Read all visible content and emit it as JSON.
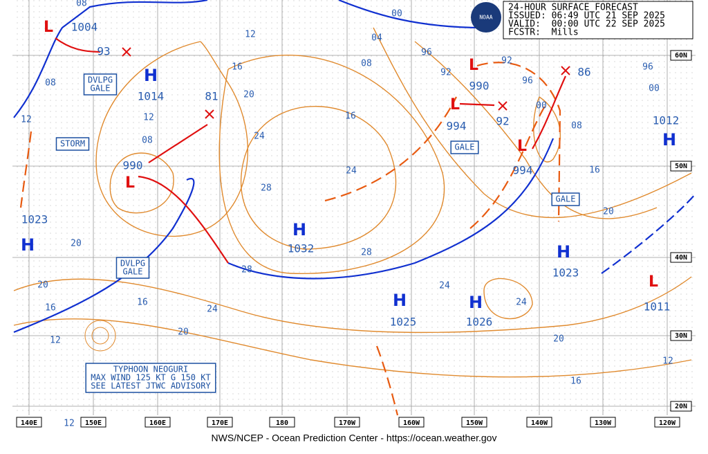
{
  "header": {
    "lines": [
      "24-HOUR SURFACE FORECAST",
      "ISSUED: 06:49 UTC 21 SEP 2025",
      "VALID:  00:00 UTC 22 SEP 2025",
      "FCSTR:  Mills"
    ],
    "logo": "NOAA"
  },
  "footer": "NWS/NCEP - Ocean Prediction Center - https://ocean.weather.gov",
  "longitudes": [
    "140E",
    "150E",
    "160E",
    "170E",
    "180",
    "170W",
    "160W",
    "150W",
    "140W",
    "130W",
    "120W"
  ],
  "latitudes": [
    "60N",
    "50N",
    "40N",
    "30N",
    "20N"
  ],
  "pressure_centers": [
    {
      "symbol": "L",
      "value": "1004"
    },
    {
      "symbol": "H",
      "value": "1014"
    },
    {
      "symbol": "L",
      "value": "990"
    },
    {
      "symbol": "H",
      "value": "1023"
    },
    {
      "symbol": "H",
      "value": "1032"
    },
    {
      "symbol": "H",
      "value": "1025"
    },
    {
      "symbol": "H",
      "value": "1026"
    },
    {
      "symbol": "H",
      "value": "1023"
    },
    {
      "symbol": "H",
      "value": "1012"
    },
    {
      "symbol": "L",
      "value": "990"
    },
    {
      "symbol": "L",
      "value": "994"
    },
    {
      "symbol": "L",
      "value": "994"
    },
    {
      "symbol": "L",
      "value": "1011"
    }
  ],
  "forecast_positions": [
    "93",
    "81",
    "92",
    "86"
  ],
  "isobar_labels": [
    "08",
    "12",
    "16",
    "20",
    "24",
    "28",
    "24",
    "16",
    "08",
    "04",
    "00",
    "96",
    "92",
    "92",
    "96",
    "00",
    "08",
    "16",
    "20",
    "96",
    "00",
    "24",
    "24",
    "28",
    "28",
    "24",
    "20",
    "16",
    "12",
    "16",
    "20",
    "20",
    "12",
    "08",
    "12",
    "08",
    "20",
    "16",
    "12",
    "12"
  ],
  "warning_boxes": [
    [
      "DVLPG",
      "GALE"
    ],
    [
      "STORM"
    ],
    [
      "DVLPG",
      "GALE"
    ],
    [
      "GALE"
    ],
    [
      "GALE"
    ],
    [
      "TYPHOON NEOGURI",
      "MAX WIND 125 KT G 150 KT",
      "SEE LATEST JTWC ADVISORY"
    ]
  ]
}
